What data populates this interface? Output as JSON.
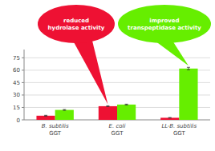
{
  "chart_data": {
    "type": "bar",
    "categories": [
      "B. subtilis\nGGT",
      "E. coli\nGGT",
      "LL-B. subtilis\nGGT"
    ],
    "series": [
      {
        "color": "#ee1133",
        "values": [
          5.0,
          16.5,
          2.5
        ],
        "errors": [
          0.5,
          0.5,
          0.3
        ]
      },
      {
        "color": "#66ee00",
        "values": [
          12.0,
          18.5,
          62.0
        ],
        "errors": [
          0.5,
          0.5,
          1.5
        ]
      }
    ],
    "ylim": [
      0,
      85
    ],
    "yticks": [
      0,
      15,
      30,
      45,
      60,
      75
    ],
    "grid": true,
    "annotations": [
      {
        "text": "reduced\nhydrolase activity",
        "color": "#ee1133"
      },
      {
        "text": "improved\ntranspeptidase activity",
        "color": "#66ee00"
      }
    ]
  }
}
